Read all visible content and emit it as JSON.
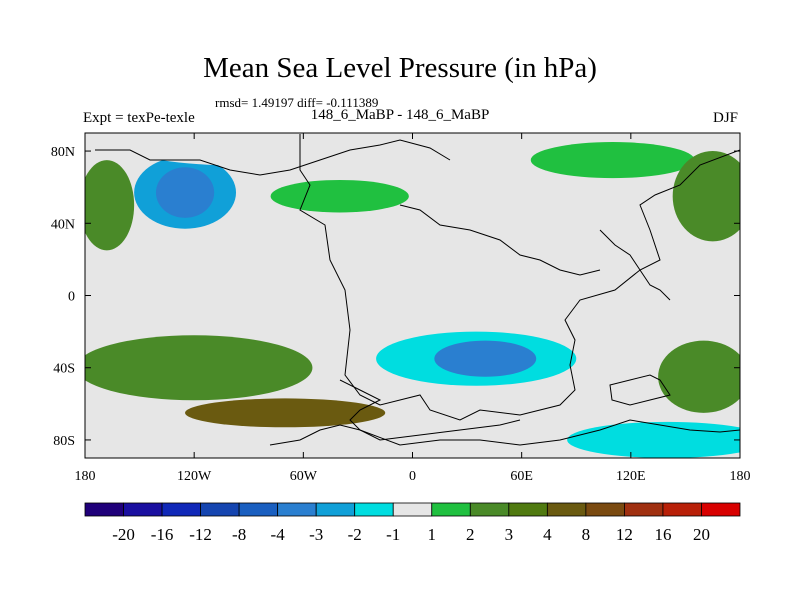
{
  "title": "Mean Sea Level Pressure (in hPa)",
  "stats": "rmsd= 1.49197 diff= -0.111389",
  "labels": {
    "left": "Expt = texPe-texle",
    "center": "148_6_MaBP - 148_6_MaBP",
    "right": "DJF"
  },
  "chart_data": {
    "type": "heatmap",
    "title": "Mean Sea Level Pressure (in hPa)",
    "units": "hPa",
    "x_axis": {
      "range": [
        -180,
        180
      ],
      "ticks": [
        {
          "value": -180,
          "label": "180"
        },
        {
          "value": -120,
          "label": "120W"
        },
        {
          "value": -60,
          "label": "60W"
        },
        {
          "value": 0,
          "label": "0"
        },
        {
          "value": 60,
          "label": "60E"
        },
        {
          "value": 120,
          "label": "120E"
        },
        {
          "value": 180,
          "label": "180"
        }
      ]
    },
    "y_axis": {
      "range": [
        -90,
        90
      ],
      "ticks": [
        {
          "value": 80,
          "label": "80N"
        },
        {
          "value": 40,
          "label": "40N"
        },
        {
          "value": 0,
          "label": "0"
        },
        {
          "value": -40,
          "label": "40S"
        },
        {
          "value": -80,
          "label": "80S"
        }
      ]
    },
    "colorbar": {
      "colors": [
        "#20007a",
        "#1a0fa0",
        "#1028b8",
        "#1545b0",
        "#1a5fc0",
        "#2a7fd0",
        "#10a0d8",
        "#00dde0",
        "#e6e6e6",
        "#20c040",
        "#4a8a28",
        "#507a10",
        "#6a5a10",
        "#7a4a10",
        "#a03010",
        "#b82008",
        "#d80000"
      ],
      "labels": [
        "-20",
        "-16",
        "-12",
        "-8",
        "-4",
        "-3",
        "-2",
        "-1",
        "1",
        "2",
        "3",
        "4",
        "8",
        "12",
        "16",
        "20"
      ]
    },
    "regions": [
      {
        "name": "north-pacific-low",
        "value": -3,
        "lon": -125,
        "lat": 57,
        "rlon": 28,
        "rlat": 20
      },
      {
        "name": "north-pacific-low-core",
        "value": -4,
        "lon": -125,
        "lat": 57,
        "rlon": 16,
        "rlat": 14
      },
      {
        "name": "arctic-negative",
        "value": -1,
        "lon": -95,
        "lat": 82,
        "rlon": 60,
        "rlat": 10
      },
      {
        "name": "north-atlantic-positive",
        "value": 1,
        "lon": -40,
        "lat": 55,
        "rlon": 38,
        "rlat": 9
      },
      {
        "name": "arctic-positive-east",
        "value": 1,
        "lon": 110,
        "lat": 75,
        "rlon": 45,
        "rlat": 10
      },
      {
        "name": "siberia-positive",
        "value": 2,
        "lon": 165,
        "lat": 55,
        "rlon": 22,
        "rlat": 25
      },
      {
        "name": "west-pacific-positive",
        "value": 2,
        "lon": -168,
        "lat": 50,
        "rlon": 15,
        "rlat": 25
      },
      {
        "name": "central-negative",
        "value": -1,
        "lon": 65,
        "lat": 25,
        "rlon": 55,
        "rlat": 35
      },
      {
        "name": "southern-negative",
        "value": -1,
        "lon": 40,
        "lat": -20,
        "rlon": 70,
        "rlat": 18
      },
      {
        "name": "southern-low",
        "value": -2,
        "lon": 35,
        "lat": -35,
        "rlon": 55,
        "rlat": 15
      },
      {
        "name": "southern-low-core",
        "value": -4,
        "lon": 40,
        "lat": -35,
        "rlon": 28,
        "rlat": 10
      },
      {
        "name": "south-pacific-positive",
        "value": 2,
        "lon": -120,
        "lat": -40,
        "rlon": 65,
        "rlat": 18
      },
      {
        "name": "south-ocean-positive",
        "value": 4,
        "lon": -70,
        "lat": -65,
        "rlon": 55,
        "rlat": 8
      },
      {
        "name": "southeast-positive",
        "value": 2,
        "lon": 160,
        "lat": -45,
        "rlon": 25,
        "rlat": 20
      },
      {
        "name": "antarctic-negative-west",
        "value": -1,
        "lon": -120,
        "lat": -82,
        "rlon": 70,
        "rlat": 8
      },
      {
        "name": "antarctic-negative-east",
        "value": -2,
        "lon": 140,
        "lat": -80,
        "rlon": 55,
        "rlat": 10
      }
    ]
  }
}
